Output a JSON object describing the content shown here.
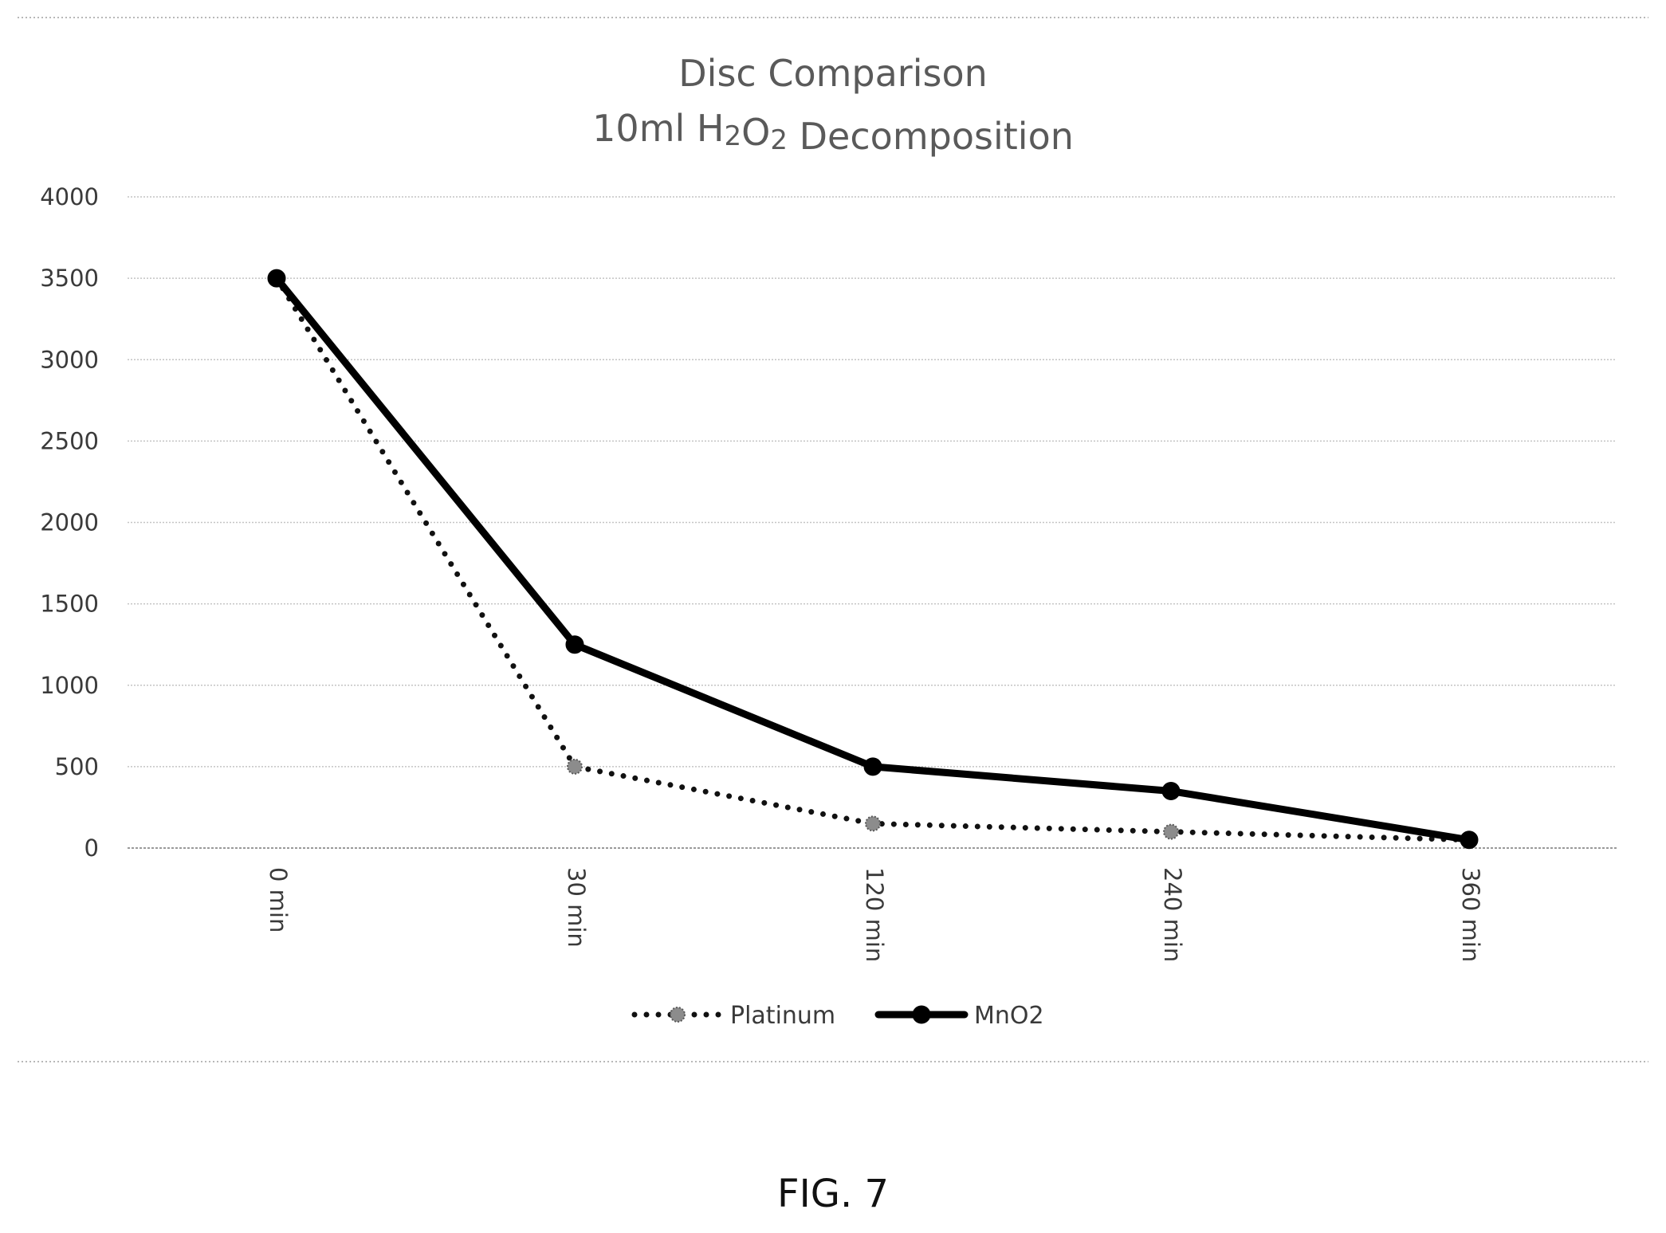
{
  "figure": {
    "caption": "FIG. 7"
  },
  "chart_data": {
    "type": "line",
    "title": "Disc Comparison",
    "subtitle": "10ml H2O2 Decomposition",
    "xlabel": "",
    "ylabel": "",
    "categories": [
      "0 min",
      "30 min",
      "120 min",
      "240 min",
      "360 min"
    ],
    "ylim": [
      0,
      4000
    ],
    "yticks": [
      0,
      500,
      1000,
      1500,
      2000,
      2500,
      3000,
      3500,
      4000
    ],
    "grid": true,
    "legend_position": "bottom",
    "series": [
      {
        "name": "Platinum",
        "values": [
          3500,
          500,
          150,
          100,
          50
        ],
        "line_style": "dotted",
        "color": "#111111",
        "marker_color": "#8c8c8c"
      },
      {
        "name": "MnO2",
        "values": [
          3500,
          1250,
          500,
          350,
          50
        ],
        "line_style": "solid",
        "color": "#000000",
        "marker_color": "#000000"
      }
    ]
  }
}
